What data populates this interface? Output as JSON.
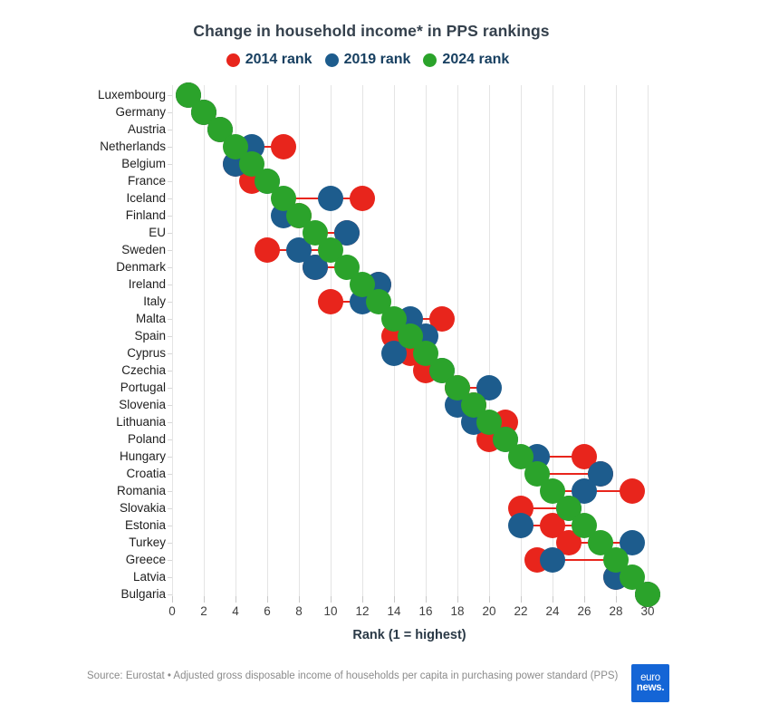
{
  "title": "Change in household income* in PPS rankings",
  "legend": {
    "items": [
      {
        "label": "2014 rank",
        "color": "#e8251c"
      },
      {
        "label": "2019 rank",
        "color": "#1d5c8d"
      },
      {
        "label": "2024 rank",
        "color": "#2ba32b"
      }
    ]
  },
  "x_axis": {
    "label": "Rank (1 = highest)",
    "ticks": [
      0,
      2,
      4,
      6,
      8,
      10,
      12,
      14,
      16,
      18,
      20,
      22,
      24,
      26,
      28,
      30
    ]
  },
  "footer": {
    "source": "Source: Eurostat • Adjusted gross disposable income of households per capita in purchasing power standard (PPS)",
    "logo_line1": "euro",
    "logo_line2": "news.",
    "logo_color": "#1465d6"
  },
  "chart_data": {
    "type": "scatter",
    "title": "Change in household income* in PPS rankings",
    "xlabel": "Rank (1 = highest)",
    "xlim": [
      0,
      30
    ],
    "grid": true,
    "legend_position": "top",
    "connector_color": "#e8251c",
    "categories": [
      "Luxembourg",
      "Germany",
      "Austria",
      "Netherlands",
      "Belgium",
      "France",
      "Iceland",
      "Finland",
      "EU",
      "Sweden",
      "Denmark",
      "Ireland",
      "Italy",
      "Malta",
      "Spain",
      "Cyprus",
      "Czechia",
      "Portugal",
      "Slovenia",
      "Lithuania",
      "Poland",
      "Hungary",
      "Croatia",
      "Romania",
      "Slovakia",
      "Estonia",
      "Turkey",
      "Greece",
      "Latvia",
      "Bulgaria"
    ],
    "series": [
      {
        "name": "2014 rank",
        "color": "#e8251c",
        "values": [
          1,
          2,
          3,
          7,
          4,
          5,
          12,
          8,
          11,
          6,
          9,
          13,
          10,
          17,
          14,
          15,
          16,
          18,
          19,
          21,
          20,
          26,
          27,
          29,
          22,
          24,
          25,
          23,
          28,
          30
        ]
      },
      {
        "name": "2019 rank",
        "color": "#1d5c8d",
        "values": [
          1,
          2,
          3,
          5,
          4,
          6,
          10,
          7,
          11,
          8,
          9,
          13,
          12,
          15,
          16,
          14,
          17,
          20,
          18,
          19,
          21,
          23,
          27,
          26,
          25,
          22,
          29,
          24,
          28,
          30
        ]
      },
      {
        "name": "2024 rank",
        "color": "#2ba32b",
        "values": [
          1,
          2,
          3,
          4,
          5,
          6,
          7,
          8,
          9,
          10,
          11,
          12,
          13,
          14,
          15,
          16,
          17,
          18,
          19,
          20,
          21,
          22,
          23,
          24,
          25,
          26,
          27,
          28,
          29,
          30
        ]
      }
    ]
  }
}
